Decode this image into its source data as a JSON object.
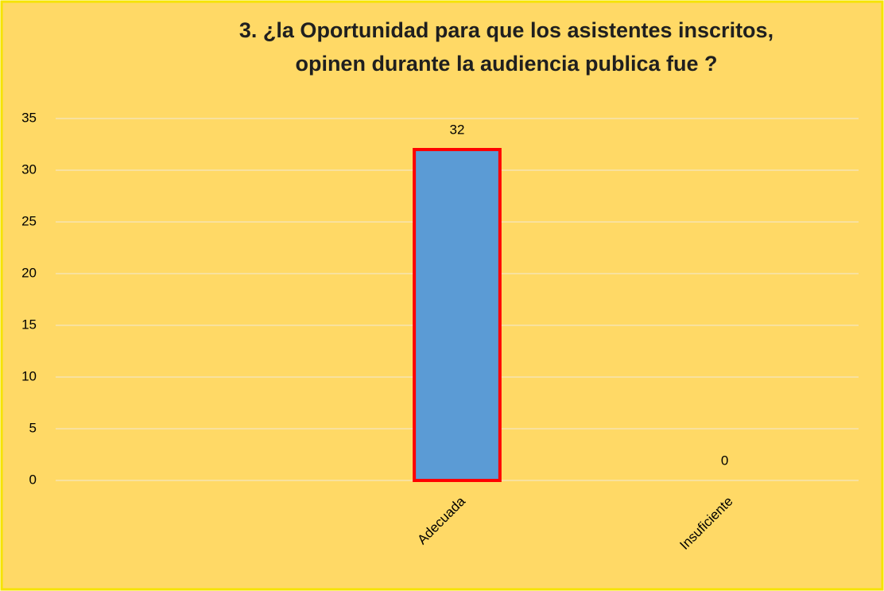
{
  "chart_data": {
    "type": "bar",
    "title": [
      "3. ¿la Oportunidad para que los asistentes inscritos,",
      "opinen durante la audiencia publica fue ?"
    ],
    "categories": [
      null,
      "Adecuada",
      "Insuficiente"
    ],
    "values": [
      null,
      32,
      0
    ],
    "color": "#5b9bd5",
    "edge_color": "#ff0000",
    "ylim": [
      0,
      35
    ],
    "yticks": [
      0,
      5,
      10,
      15,
      20,
      25,
      30,
      35
    ],
    "grid": true
  }
}
